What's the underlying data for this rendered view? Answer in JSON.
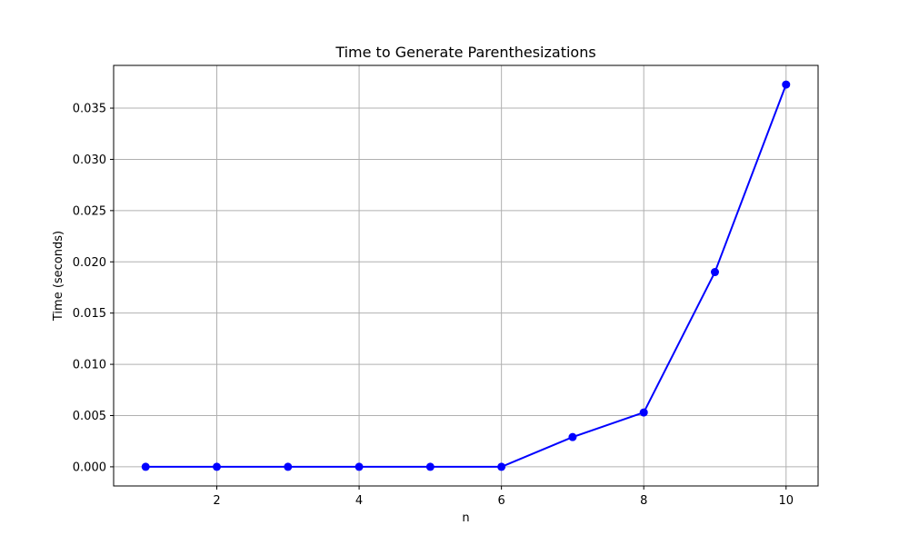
{
  "chart_data": {
    "type": "line",
    "title": "Time to Generate Parenthesizations",
    "xlabel": "n",
    "ylabel": "Time (seconds)",
    "x": [
      1,
      2,
      3,
      4,
      5,
      6,
      7,
      8,
      9,
      10
    ],
    "series": [
      {
        "values": [
          0.0,
          0.0,
          0.0,
          0.0,
          0.0,
          0.0,
          0.0029,
          0.0053,
          0.019,
          0.0373
        ],
        "color": "#0000ff",
        "marker": "circle"
      }
    ],
    "xlim": [
      0.55,
      10.45
    ],
    "ylim": [
      -0.00187,
      0.03917
    ],
    "xticks": [
      2,
      4,
      6,
      8,
      10
    ],
    "xtick_labels": [
      "2",
      "4",
      "6",
      "8",
      "10"
    ],
    "yticks": [
      0.0,
      0.005,
      0.01,
      0.015,
      0.02,
      0.025,
      0.03,
      0.035
    ],
    "ytick_labels": [
      "0.000",
      "0.005",
      "0.010",
      "0.015",
      "0.020",
      "0.025",
      "0.030",
      "0.035"
    ],
    "grid": true,
    "grid_color": "#b0b0b0"
  }
}
